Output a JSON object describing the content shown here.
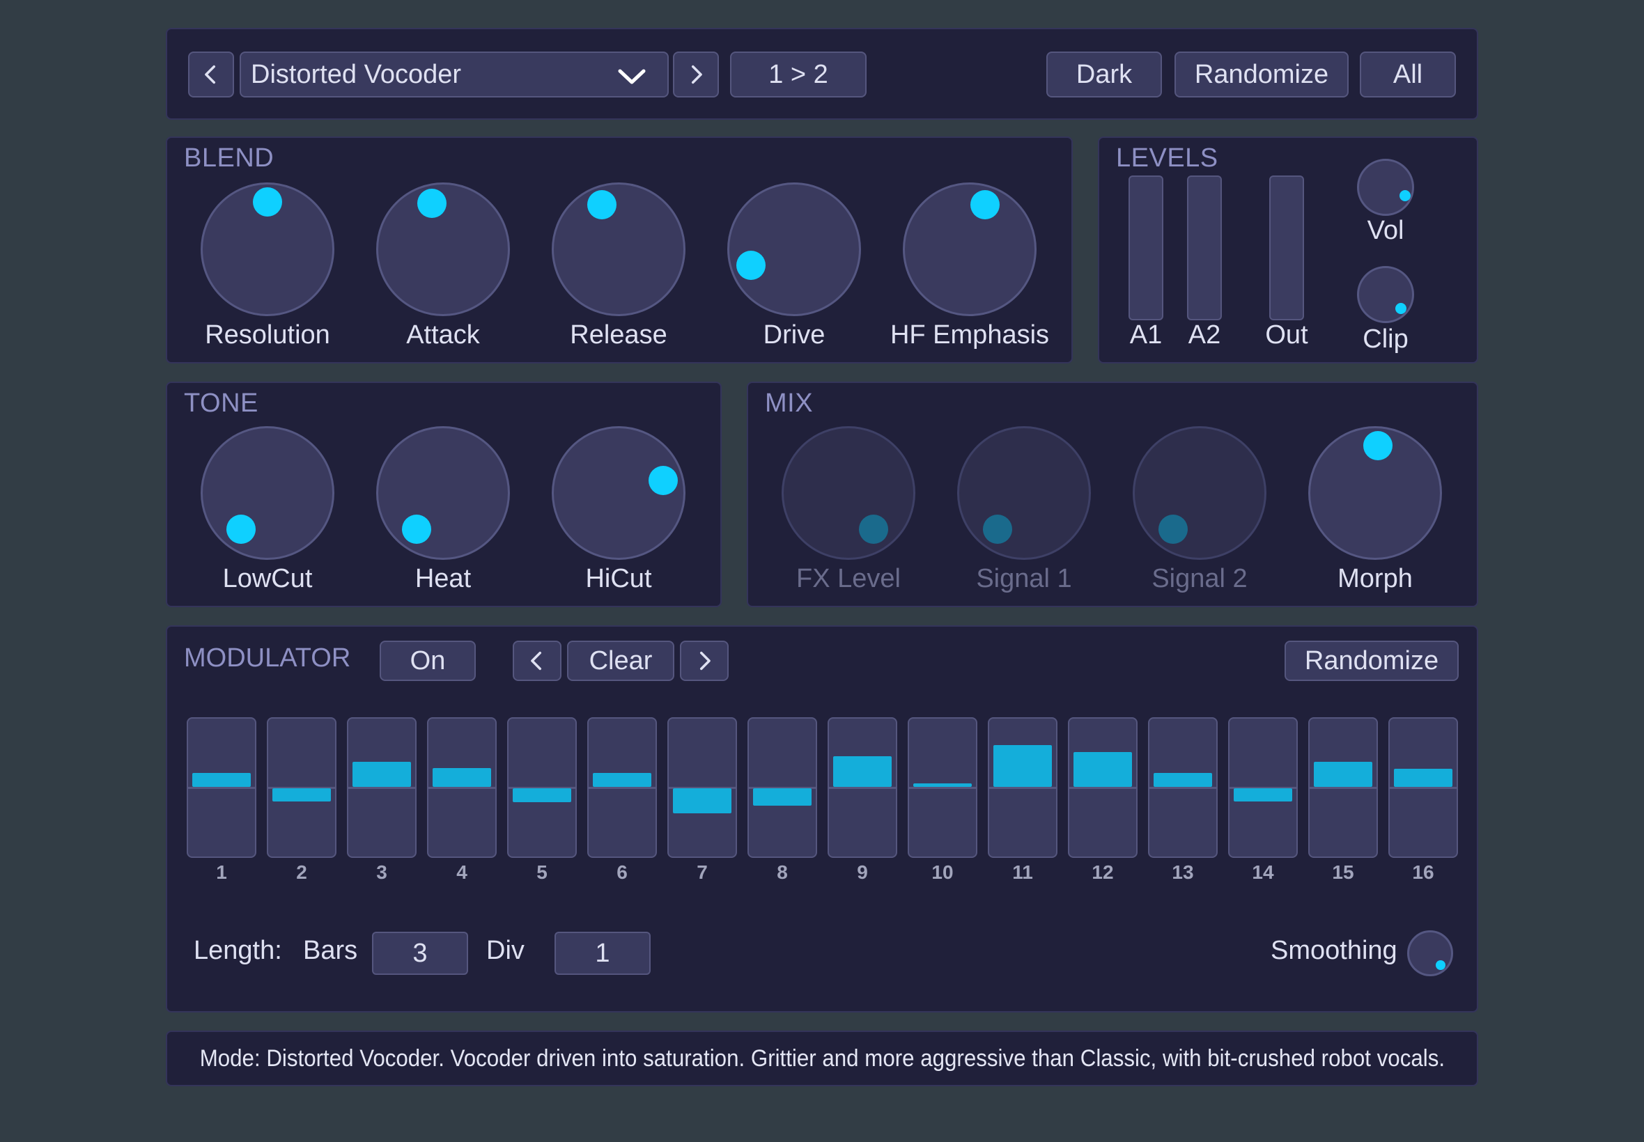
{
  "header": {
    "preset_name": "Distorted Vocoder",
    "routing_label": "1 > 2",
    "theme_label": "Dark",
    "randomize_label": "Randomize",
    "all_label": "All"
  },
  "blend": {
    "title": "BLEND",
    "knobs": [
      {
        "label": "Resolution"
      },
      {
        "label": "Attack"
      },
      {
        "label": "Release"
      },
      {
        "label": "Drive"
      },
      {
        "label": "HF Emphasis"
      }
    ]
  },
  "levels": {
    "title": "LEVELS",
    "meters": [
      {
        "label": "A1"
      },
      {
        "label": "A2"
      },
      {
        "label": "Out"
      }
    ],
    "vol_label": "Vol",
    "clip_label": "Clip"
  },
  "tone": {
    "title": "TONE",
    "knobs": [
      {
        "label": "LowCut"
      },
      {
        "label": "Heat"
      },
      {
        "label": "HiCut"
      }
    ]
  },
  "mix": {
    "title": "MIX",
    "knobs": [
      {
        "label": "FX Level",
        "enabled": false
      },
      {
        "label": "Signal 1",
        "enabled": false
      },
      {
        "label": "Signal 2",
        "enabled": false
      },
      {
        "label": "Morph",
        "enabled": true
      }
    ]
  },
  "modulator": {
    "title": "MODULATOR",
    "on_label": "On",
    "pattern_label": "Clear",
    "randomize_label": "Randomize",
    "steps": [
      {
        "num": "1",
        "value": 0.2
      },
      {
        "num": "2",
        "value": -0.19
      },
      {
        "num": "3",
        "value": 0.37
      },
      {
        "num": "4",
        "value": 0.28
      },
      {
        "num": "5",
        "value": -0.2
      },
      {
        "num": "6",
        "value": 0.2
      },
      {
        "num": "7",
        "value": -0.37
      },
      {
        "num": "8",
        "value": -0.26
      },
      {
        "num": "9",
        "value": 0.45
      },
      {
        "num": "10",
        "value": 0.03
      },
      {
        "num": "11",
        "value": 0.61
      },
      {
        "num": "12",
        "value": 0.51
      },
      {
        "num": "13",
        "value": 0.2
      },
      {
        "num": "14",
        "value": -0.19
      },
      {
        "num": "15",
        "value": 0.37
      },
      {
        "num": "16",
        "value": 0.27
      }
    ],
    "length_label": "Length:",
    "bars_label": "Bars",
    "bars_value": "3",
    "div_label": "Div",
    "div_value": "1",
    "smoothing_label": "Smoothing"
  },
  "description": "Mode: Distorted Vocoder. Vocoder driven into saturation. Grittier and more aggressive than Classic, with bit-crushed robot vocals.",
  "colors": {
    "accent": "#0fd0ff",
    "accent_dim": "#1a6a8c",
    "step_bar": "#14aeda",
    "panel": "#20203a",
    "background": "#323d45"
  }
}
